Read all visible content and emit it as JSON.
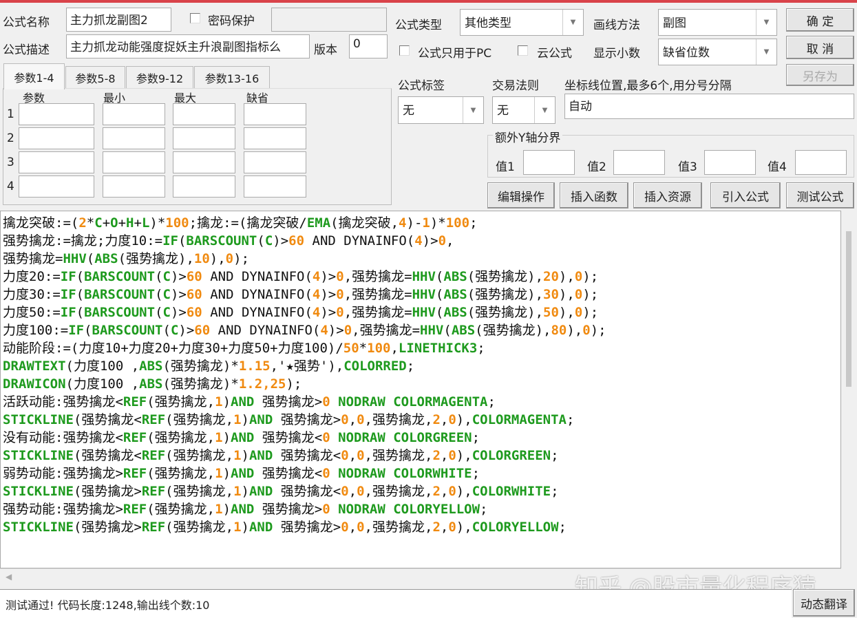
{
  "form": {
    "name_label": "公式名称",
    "name_value": "主力抓龙副图2",
    "password_label": "密码保护",
    "password_checked": false,
    "desc_label": "公式描述",
    "desc_value": "主力抓龙动能强度捉妖主升浪副图指标么",
    "version_label": "版本",
    "version_value": "0",
    "type_label": "公式类型",
    "type_value": "其他类型",
    "draw_label": "画线方法",
    "draw_value": "副图",
    "pc_only_label": "公式只用于PC",
    "cloud_label": "云公式",
    "decimals_label": "显示小数",
    "decimals_value": "缺省位数",
    "tag_label": "公式标签",
    "tag_value": "无",
    "trade_label": "交易法则",
    "trade_value": "无",
    "axis_label": "坐标线位置,最多6个,用分号分隔",
    "axis_value": "自动",
    "extra_y_label": "额外Y轴分界",
    "y_values": [
      {
        "label": "值1",
        "value": ""
      },
      {
        "label": "值2",
        "value": ""
      },
      {
        "label": "值3",
        "value": ""
      },
      {
        "label": "值4",
        "value": ""
      }
    ]
  },
  "buttons": {
    "ok": "确  定",
    "cancel": "取  消",
    "save_as": "另存为",
    "edit": "编辑操作",
    "insert_func": "插入函数",
    "insert_res": "插入资源",
    "import": "引入公式",
    "test": "测试公式",
    "translate": "动态翻译"
  },
  "params": {
    "tabs": [
      "参数1-4",
      "参数5-8",
      "参数9-12",
      "参数13-16"
    ],
    "active_tab": 0,
    "headers": [
      "参数",
      "最小",
      "最大",
      "缺省"
    ],
    "rows": [
      "1",
      "2",
      "3",
      "4"
    ]
  },
  "code_lines": [
    [
      [
        "擒龙突破:=(",
        "t"
      ],
      [
        "2",
        "n"
      ],
      [
        "*",
        "t"
      ],
      [
        "C",
        "f"
      ],
      [
        "+",
        "t"
      ],
      [
        "O",
        "f"
      ],
      [
        "+",
        "t"
      ],
      [
        "H",
        "f"
      ],
      [
        "+",
        "t"
      ],
      [
        "L",
        "f"
      ],
      [
        ")*",
        "t"
      ],
      [
        "100",
        "n"
      ],
      [
        ";擒龙:=(擒龙突破/",
        "t"
      ],
      [
        "EMA",
        "f"
      ],
      [
        "(擒龙突破,",
        "t"
      ],
      [
        "4",
        "n"
      ],
      [
        ")-",
        "t"
      ],
      [
        "1",
        "n"
      ],
      [
        ")*",
        "t"
      ],
      [
        "100",
        "n"
      ],
      [
        ";",
        "t"
      ]
    ],
    [
      [
        "强势擒龙:=擒龙;力度10:=",
        "t"
      ],
      [
        "IF",
        "f"
      ],
      [
        "(",
        "t"
      ],
      [
        "BARSCOUNT",
        "f"
      ],
      [
        "(",
        "t"
      ],
      [
        "C",
        "f"
      ],
      [
        ")>",
        "t"
      ],
      [
        "60",
        "n"
      ],
      [
        " AND DYNAINFO(",
        "t"
      ],
      [
        "4",
        "n"
      ],
      [
        ")>",
        "t"
      ],
      [
        "0",
        "n"
      ],
      [
        ",",
        "t"
      ]
    ],
    [
      [
        "强势擒龙=",
        "t"
      ],
      [
        "HHV",
        "f"
      ],
      [
        "(",
        "t"
      ],
      [
        "ABS",
        "f"
      ],
      [
        "(强势擒龙),",
        "t"
      ],
      [
        "10",
        "n"
      ],
      [
        "),",
        "t"
      ],
      [
        "0",
        "n"
      ],
      [
        ");",
        "t"
      ]
    ],
    [
      [
        "力度20:=",
        "t"
      ],
      [
        "IF",
        "f"
      ],
      [
        "(",
        "t"
      ],
      [
        "BARSCOUNT",
        "f"
      ],
      [
        "(",
        "t"
      ],
      [
        "C",
        "f"
      ],
      [
        ")>",
        "t"
      ],
      [
        "60",
        "n"
      ],
      [
        " AND DYNAINFO(",
        "t"
      ],
      [
        "4",
        "n"
      ],
      [
        ")>",
        "t"
      ],
      [
        "0",
        "n"
      ],
      [
        ",强势擒龙=",
        "t"
      ],
      [
        "HHV",
        "f"
      ],
      [
        "(",
        "t"
      ],
      [
        "ABS",
        "f"
      ],
      [
        "(强势擒龙),",
        "t"
      ],
      [
        "20",
        "n"
      ],
      [
        "),",
        "t"
      ],
      [
        "0",
        "n"
      ],
      [
        ");",
        "t"
      ]
    ],
    [
      [
        "力度30:=",
        "t"
      ],
      [
        "IF",
        "f"
      ],
      [
        "(",
        "t"
      ],
      [
        "BARSCOUNT",
        "f"
      ],
      [
        "(",
        "t"
      ],
      [
        "C",
        "f"
      ],
      [
        ")>",
        "t"
      ],
      [
        "60",
        "n"
      ],
      [
        " AND DYNAINFO(",
        "t"
      ],
      [
        "4",
        "n"
      ],
      [
        ")>",
        "t"
      ],
      [
        "0",
        "n"
      ],
      [
        ",强势擒龙=",
        "t"
      ],
      [
        "HHV",
        "f"
      ],
      [
        "(",
        "t"
      ],
      [
        "ABS",
        "f"
      ],
      [
        "(强势擒龙),",
        "t"
      ],
      [
        "30",
        "n"
      ],
      [
        "),",
        "t"
      ],
      [
        "0",
        "n"
      ],
      [
        ");",
        "t"
      ]
    ],
    [
      [
        "力度50:=",
        "t"
      ],
      [
        "IF",
        "f"
      ],
      [
        "(",
        "t"
      ],
      [
        "BARSCOUNT",
        "f"
      ],
      [
        "(",
        "t"
      ],
      [
        "C",
        "f"
      ],
      [
        ")>",
        "t"
      ],
      [
        "60",
        "n"
      ],
      [
        " AND DYNAINFO(",
        "t"
      ],
      [
        "4",
        "n"
      ],
      [
        ")>",
        "t"
      ],
      [
        "0",
        "n"
      ],
      [
        ",强势擒龙=",
        "t"
      ],
      [
        "HHV",
        "f"
      ],
      [
        "(",
        "t"
      ],
      [
        "ABS",
        "f"
      ],
      [
        "(强势擒龙),",
        "t"
      ],
      [
        "50",
        "n"
      ],
      [
        "),",
        "t"
      ],
      [
        "0",
        "n"
      ],
      [
        ");",
        "t"
      ]
    ],
    [
      [
        "力度100:=",
        "t"
      ],
      [
        "IF",
        "f"
      ],
      [
        "(",
        "t"
      ],
      [
        "BARSCOUNT",
        "f"
      ],
      [
        "(",
        "t"
      ],
      [
        "C",
        "f"
      ],
      [
        ")>",
        "t"
      ],
      [
        "60",
        "n"
      ],
      [
        " AND DYNAINFO(",
        "t"
      ],
      [
        "4",
        "n"
      ],
      [
        ")>",
        "t"
      ],
      [
        "0",
        "n"
      ],
      [
        ",强势擒龙=",
        "t"
      ],
      [
        "HHV",
        "f"
      ],
      [
        "(",
        "t"
      ],
      [
        "ABS",
        "f"
      ],
      [
        "(强势擒龙),",
        "t"
      ],
      [
        "80",
        "n"
      ],
      [
        "),",
        "t"
      ],
      [
        "0",
        "n"
      ],
      [
        ");",
        "t"
      ]
    ],
    [
      [
        "动能阶段:=(力度10+力度20+力度30+力度50+力度100)/",
        "t"
      ],
      [
        "50",
        "n"
      ],
      [
        "*",
        "t"
      ],
      [
        "100",
        "n"
      ],
      [
        ",",
        "t"
      ],
      [
        "LINETHICK3",
        "f"
      ],
      [
        ";",
        "t"
      ]
    ],
    [
      [
        "DRAWTEXT",
        "f"
      ],
      [
        "(力度100 ,",
        "t"
      ],
      [
        "ABS",
        "f"
      ],
      [
        "(强势擒龙)*",
        "t"
      ],
      [
        "1.15",
        "n"
      ],
      [
        ",'★强势'),",
        "t"
      ],
      [
        "COLORRED",
        "f"
      ],
      [
        ";",
        "t"
      ]
    ],
    [
      [
        "DRAWICON",
        "f"
      ],
      [
        "(力度100 ,",
        "t"
      ],
      [
        "ABS",
        "f"
      ],
      [
        "(强势擒龙)*",
        "t"
      ],
      [
        "1.2,25",
        "n"
      ],
      [
        ");",
        "t"
      ]
    ],
    [
      [
        "活跃动能:强势擒龙<",
        "t"
      ],
      [
        "REF",
        "f"
      ],
      [
        "(强势擒龙,",
        "t"
      ],
      [
        "1",
        "n"
      ],
      [
        ")",
        "t"
      ],
      [
        "AND",
        "f"
      ],
      [
        " 强势擒龙>",
        "t"
      ],
      [
        "0",
        "n"
      ],
      [
        " NODRAW COLORMAGENTA",
        "f"
      ],
      [
        ";",
        "t"
      ]
    ],
    [
      [
        "STICKLINE",
        "f"
      ],
      [
        "(强势擒龙<",
        "t"
      ],
      [
        "REF",
        "f"
      ],
      [
        "(强势擒龙,",
        "t"
      ],
      [
        "1",
        "n"
      ],
      [
        ")",
        "t"
      ],
      [
        "AND",
        "f"
      ],
      [
        " 强势擒龙>",
        "t"
      ],
      [
        "0",
        "n"
      ],
      [
        ",",
        "t"
      ],
      [
        "0",
        "n"
      ],
      [
        ",强势擒龙,",
        "t"
      ],
      [
        "2",
        "n"
      ],
      [
        ",",
        "t"
      ],
      [
        "0",
        "n"
      ],
      [
        "),",
        "t"
      ],
      [
        "COLORMAGENTA",
        "f"
      ],
      [
        ";",
        "t"
      ]
    ],
    [
      [
        "没有动能:强势擒龙<",
        "t"
      ],
      [
        "REF",
        "f"
      ],
      [
        "(强势擒龙,",
        "t"
      ],
      [
        "1",
        "n"
      ],
      [
        ")",
        "t"
      ],
      [
        "AND",
        "f"
      ],
      [
        " 强势擒龙<",
        "t"
      ],
      [
        "0",
        "n"
      ],
      [
        " NODRAW COLORGREEN",
        "f"
      ],
      [
        ";",
        "t"
      ]
    ],
    [
      [
        "STICKLINE",
        "f"
      ],
      [
        "(强势擒龙<",
        "t"
      ],
      [
        "REF",
        "f"
      ],
      [
        "(强势擒龙,",
        "t"
      ],
      [
        "1",
        "n"
      ],
      [
        ")",
        "t"
      ],
      [
        "AND",
        "f"
      ],
      [
        " 强势擒龙<",
        "t"
      ],
      [
        "0",
        "n"
      ],
      [
        ",",
        "t"
      ],
      [
        "0",
        "n"
      ],
      [
        ",强势擒龙,",
        "t"
      ],
      [
        "2",
        "n"
      ],
      [
        ",",
        "t"
      ],
      [
        "0",
        "n"
      ],
      [
        "),",
        "t"
      ],
      [
        "COLORGREEN",
        "f"
      ],
      [
        ";",
        "t"
      ]
    ],
    [
      [
        "弱势动能:强势擒龙>",
        "t"
      ],
      [
        "REF",
        "f"
      ],
      [
        "(强势擒龙,",
        "t"
      ],
      [
        "1",
        "n"
      ],
      [
        ")",
        "t"
      ],
      [
        "AND",
        "f"
      ],
      [
        " 强势擒龙<",
        "t"
      ],
      [
        "0",
        "n"
      ],
      [
        " NODRAW COLORWHITE",
        "f"
      ],
      [
        ";",
        "t"
      ]
    ],
    [
      [
        "STICKLINE",
        "f"
      ],
      [
        "(强势擒龙>",
        "t"
      ],
      [
        "REF",
        "f"
      ],
      [
        "(强势擒龙,",
        "t"
      ],
      [
        "1",
        "n"
      ],
      [
        ")",
        "t"
      ],
      [
        "AND",
        "f"
      ],
      [
        " 强势擒龙<",
        "t"
      ],
      [
        "0",
        "n"
      ],
      [
        ",",
        "t"
      ],
      [
        "0",
        "n"
      ],
      [
        ",强势擒龙,",
        "t"
      ],
      [
        "2",
        "n"
      ],
      [
        ",",
        "t"
      ],
      [
        "0",
        "n"
      ],
      [
        "),",
        "t"
      ],
      [
        "COLORWHITE",
        "f"
      ],
      [
        ";",
        "t"
      ]
    ],
    [
      [
        "强势动能:强势擒龙>",
        "t"
      ],
      [
        "REF",
        "f"
      ],
      [
        "(强势擒龙,",
        "t"
      ],
      [
        "1",
        "n"
      ],
      [
        ")",
        "t"
      ],
      [
        "AND",
        "f"
      ],
      [
        " 强势擒龙>",
        "t"
      ],
      [
        "0",
        "n"
      ],
      [
        " NODRAW COLORYELLOW",
        "f"
      ],
      [
        ";",
        "t"
      ]
    ],
    [
      [
        "STICKLINE",
        "f"
      ],
      [
        "(强势擒龙>",
        "t"
      ],
      [
        "REF",
        "f"
      ],
      [
        "(强势擒龙,",
        "t"
      ],
      [
        "1",
        "n"
      ],
      [
        ")",
        "t"
      ],
      [
        "AND",
        "f"
      ],
      [
        " 强势擒龙>",
        "t"
      ],
      [
        "0",
        "n"
      ],
      [
        ",",
        "t"
      ],
      [
        "0",
        "n"
      ],
      [
        ",强势擒龙,",
        "t"
      ],
      [
        "2",
        "n"
      ],
      [
        ",",
        "t"
      ],
      [
        "0",
        "n"
      ],
      [
        "),",
        "t"
      ],
      [
        "COLORYELLOW",
        "f"
      ],
      [
        ";",
        "t"
      ]
    ]
  ],
  "status": "测试通过! 代码长度:1248,输出线个数:10",
  "watermark": "知乎 @股市量化程序猿",
  "colors": {
    "accent_bar": "#d9434a",
    "function": "#1e9a1e",
    "number": "#f08a10",
    "text": "#111111"
  }
}
